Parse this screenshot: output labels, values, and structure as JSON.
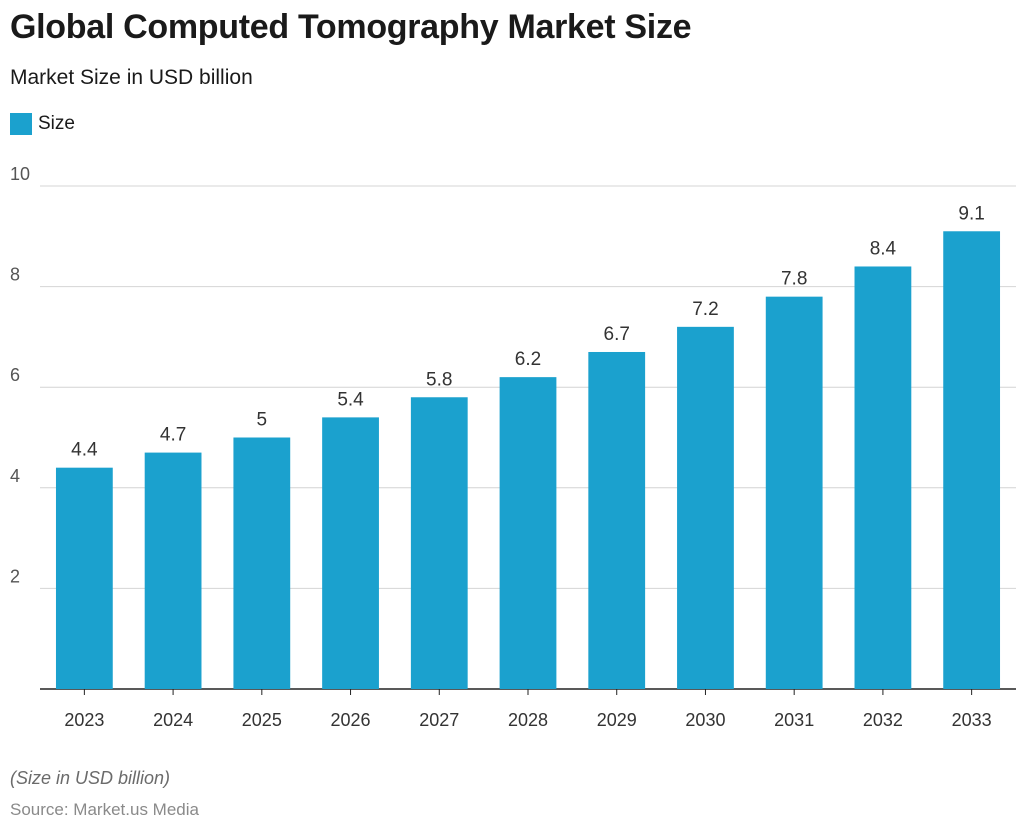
{
  "chart_data": {
    "type": "bar",
    "title": "Global Computed Tomography Market Size",
    "subtitle": "Market Size in USD billion",
    "categories": [
      "2023",
      "2024",
      "2025",
      "2026",
      "2027",
      "2028",
      "2029",
      "2030",
      "2031",
      "2032",
      "2033"
    ],
    "series": [
      {
        "name": "Size",
        "values": [
          4.4,
          4.7,
          5,
          5.4,
          5.8,
          6.2,
          6.7,
          7.2,
          7.8,
          8.4,
          9.1
        ]
      }
    ],
    "yticks": [
      2,
      4,
      6,
      8,
      10
    ],
    "ylim": [
      0,
      10
    ],
    "grid": true,
    "legend_position": "top-left",
    "bar_color": "#1ba1ce",
    "note": "(Size in USD billion)",
    "source": "Source: Market.us Media"
  }
}
